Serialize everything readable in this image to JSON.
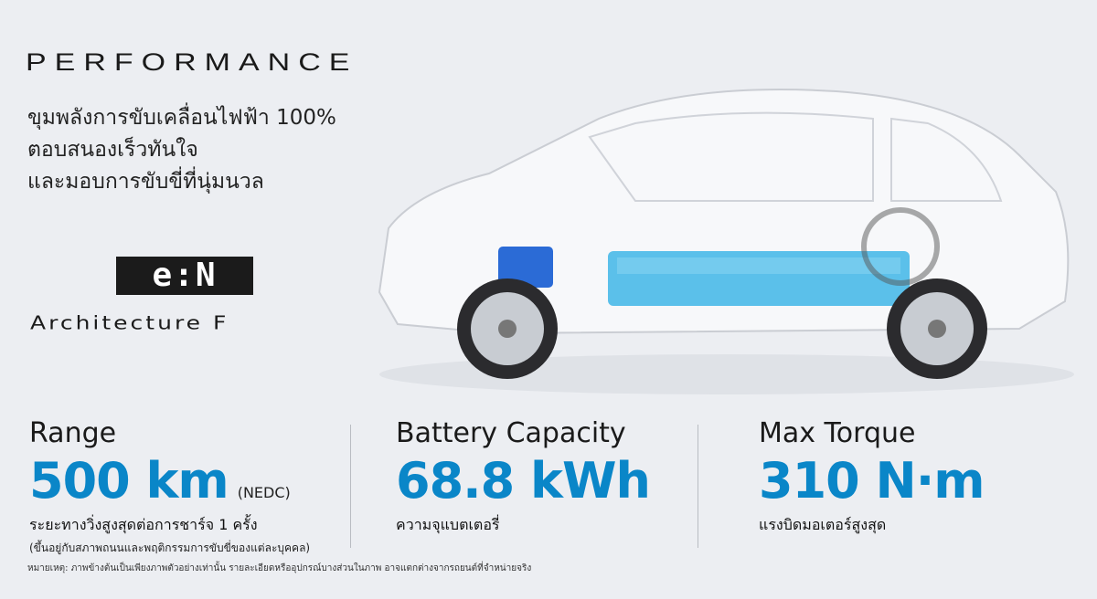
{
  "header": {
    "title": "PERFORMANCE",
    "tagline": [
      "ขุมพลังการขับเคลื่อนไฟฟ้า 100%",
      "ตอบสนองเร็วทันใจ",
      "และมอบการขับขี่ที่นุ่มนวล"
    ]
  },
  "logo": {
    "text": "e:N",
    "architecture": "Architecture F"
  },
  "colors": {
    "accent": "#0a86c8",
    "background": "#eceef2",
    "battery": "#3fb6e6"
  },
  "stats": [
    {
      "label": "Range",
      "value": "500 km",
      "note": "(NEDC)",
      "sub": "ระยะทางวิ่งสูงสุดต่อการชาร์จ 1 ครั้ง",
      "sub2": "(ขึ้นอยู่กับสภาพถนนและพฤติกรรมการขับขี่ของแต่ละบุคคล)"
    },
    {
      "label": "Battery Capacity",
      "value": "68.8 kWh",
      "sub": "ความจุแบตเตอรี่"
    },
    {
      "label": "Max Torque",
      "value": "310 N·m",
      "sub": "แรงบิดมอเตอร์สูงสุด"
    }
  ],
  "footnote": "หมายเหตุ: ภาพข้างต้นเป็นเพียงภาพตัวอย่างเท่านั้น รายละเอียดหรืออุปกรณ์บางส่วนในภาพ อาจแตกต่างจากรถยนต์ที่จำหน่ายจริง"
}
